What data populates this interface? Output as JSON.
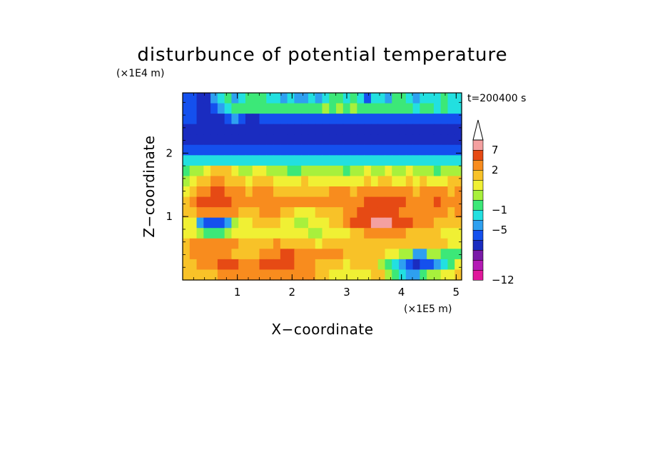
{
  "chart_data": {
    "type": "heatmap",
    "title": "disturbunce of potential temperature",
    "xlabel": "X−coordinate",
    "ylabel": "Z−coordinate",
    "x_unit": "(×1E5 m)",
    "y_unit": "(×1E4 m)",
    "time_label": "t=200400 s",
    "xlim": [
      0,
      5.1
    ],
    "ylim": [
      0,
      2.95
    ],
    "x_ticks": [
      1,
      2,
      3,
      4,
      5
    ],
    "x_tick_labels": [
      "1",
      "2",
      "3",
      "4",
      "5"
    ],
    "y_ticks": [
      1,
      2
    ],
    "y_tick_labels": [
      "1",
      "2"
    ],
    "colorbar": {
      "colors": [
        "#e0189a",
        "#b41ab4",
        "#7a1aa8",
        "#1a2cc0",
        "#1450ee",
        "#2ea0f0",
        "#22e0e0",
        "#3ce878",
        "#a8f03c",
        "#f0f034",
        "#f8c228",
        "#f88c1e",
        "#e64a14",
        "#f4a0a0"
      ],
      "tick_labels": [
        "−12",
        "−5",
        "−1",
        "2",
        "7"
      ],
      "tick_edges": [
        0,
        5,
        7,
        11,
        13
      ],
      "extend": "max"
    },
    "field": [
      [
        4,
        4,
        3,
        3,
        5,
        6,
        7,
        5,
        6,
        7,
        7,
        7,
        6,
        6,
        5,
        6,
        5,
        5,
        6,
        5,
        6,
        7,
        7,
        6,
        7,
        6,
        4,
        6,
        6,
        5,
        7,
        7,
        6,
        5,
        6,
        6,
        6,
        7,
        6,
        6
      ],
      [
        4,
        4,
        3,
        3,
        4,
        5,
        6,
        7,
        7,
        7,
        7,
        7,
        7,
        7,
        7,
        7,
        7,
        7,
        7,
        7,
        8,
        7,
        8,
        7,
        8,
        7,
        7,
        7,
        7,
        7,
        7,
        7,
        7,
        6,
        7,
        7,
        6,
        7,
        6,
        6
      ],
      [
        4,
        4,
        3,
        3,
        3,
        3,
        4,
        5,
        4,
        3,
        3,
        4,
        4,
        4,
        4,
        4,
        4,
        4,
        4,
        4,
        4,
        4,
        4,
        4,
        4,
        4,
        4,
        4,
        4,
        4,
        4,
        4,
        4,
        4,
        4,
        4,
        4,
        4,
        4,
        4
      ],
      [
        3,
        3,
        3,
        3,
        3,
        3,
        3,
        3,
        3,
        3,
        3,
        3,
        3,
        3,
        3,
        3,
        3,
        3,
        3,
        3,
        3,
        3,
        3,
        3,
        3,
        3,
        3,
        3,
        3,
        3,
        3,
        3,
        3,
        3,
        3,
        3,
        3,
        3,
        3,
        3
      ],
      [
        3,
        3,
        3,
        3,
        3,
        3,
        3,
        3,
        3,
        3,
        3,
        3,
        3,
        3,
        3,
        3,
        3,
        3,
        3,
        3,
        3,
        3,
        3,
        3,
        3,
        3,
        3,
        3,
        3,
        3,
        3,
        3,
        3,
        3,
        3,
        3,
        3,
        3,
        3,
        3
      ],
      [
        4,
        4,
        4,
        4,
        4,
        4,
        4,
        4,
        4,
        4,
        4,
        4,
        4,
        4,
        4,
        4,
        4,
        4,
        4,
        4,
        4,
        4,
        4,
        4,
        4,
        4,
        4,
        4,
        4,
        4,
        4,
        4,
        4,
        4,
        4,
        4,
        4,
        4,
        4,
        4
      ],
      [
        6,
        6,
        6,
        6,
        6,
        6,
        6,
        6,
        6,
        6,
        6,
        6,
        6,
        6,
        6,
        6,
        6,
        6,
        6,
        6,
        6,
        6,
        6,
        6,
        6,
        6,
        6,
        6,
        6,
        6,
        6,
        6,
        6,
        6,
        6,
        6,
        6,
        6,
        6,
        6
      ],
      [
        7,
        8,
        8,
        9,
        10,
        10,
        10,
        9,
        8,
        8,
        9,
        9,
        8,
        8,
        8,
        7,
        7,
        8,
        8,
        8,
        8,
        8,
        8,
        7,
        8,
        8,
        9,
        8,
        8,
        9,
        8,
        8,
        9,
        8,
        8,
        8,
        7,
        8,
        8,
        8
      ],
      [
        8,
        9,
        10,
        10,
        11,
        11,
        10,
        10,
        10,
        9,
        10,
        10,
        10,
        9,
        9,
        9,
        9,
        10,
        9,
        9,
        9,
        9,
        9,
        9,
        9,
        9,
        10,
        9,
        10,
        10,
        9,
        9,
        10,
        9,
        10,
        9,
        9,
        9,
        10,
        10
      ],
      [
        9,
        10,
        11,
        11,
        12,
        12,
        11,
        11,
        11,
        10,
        11,
        11,
        11,
        10,
        10,
        10,
        10,
        10,
        10,
        10,
        10,
        11,
        11,
        11,
        10,
        11,
        11,
        11,
        11,
        11,
        11,
        11,
        11,
        10,
        11,
        11,
        11,
        11,
        10,
        11
      ],
      [
        10,
        11,
        12,
        12,
        12,
        12,
        12,
        11,
        11,
        11,
        11,
        11,
        11,
        11,
        11,
        11,
        11,
        11,
        11,
        11,
        11,
        11,
        11,
        11,
        11,
        11,
        12,
        12,
        12,
        12,
        12,
        12,
        11,
        11,
        11,
        11,
        12,
        11,
        11,
        11
      ],
      [
        10,
        10,
        11,
        11,
        11,
        11,
        11,
        11,
        10,
        10,
        10,
        11,
        11,
        11,
        10,
        10,
        9,
        9,
        9,
        10,
        10,
        10,
        10,
        11,
        11,
        12,
        12,
        12,
        12,
        12,
        12,
        11,
        11,
        11,
        11,
        11,
        11,
        11,
        10,
        11
      ],
      [
        9,
        9,
        5,
        4,
        4,
        4,
        5,
        8,
        9,
        9,
        10,
        10,
        10,
        10,
        9,
        9,
        8,
        8,
        9,
        9,
        9,
        10,
        10,
        11,
        12,
        12,
        12,
        13,
        13,
        13,
        12,
        12,
        12,
        11,
        11,
        11,
        10,
        10,
        10,
        10
      ],
      [
        9,
        9,
        8,
        7,
        7,
        7,
        8,
        9,
        9,
        9,
        9,
        9,
        9,
        9,
        9,
        9,
        9,
        9,
        8,
        8,
        9,
        9,
        9,
        9,
        10,
        10,
        11,
        11,
        11,
        11,
        11,
        11,
        10,
        10,
        10,
        10,
        10,
        9,
        9,
        9
      ],
      [
        10,
        11,
        11,
        11,
        11,
        11,
        11,
        11,
        10,
        10,
        10,
        10,
        10,
        11,
        10,
        10,
        10,
        10,
        10,
        9,
        10,
        10,
        10,
        10,
        10,
        10,
        10,
        10,
        10,
        10,
        10,
        10,
        10,
        10,
        10,
        10,
        10,
        10,
        9,
        9
      ],
      [
        10,
        11,
        11,
        11,
        11,
        11,
        11,
        10,
        10,
        10,
        10,
        11,
        11,
        11,
        12,
        12,
        11,
        11,
        11,
        11,
        11,
        11,
        11,
        10,
        10,
        10,
        10,
        10,
        10,
        9,
        9,
        8,
        8,
        5,
        5,
        8,
        8,
        7,
        7,
        7
      ],
      [
        10,
        10,
        11,
        11,
        11,
        12,
        12,
        12,
        11,
        11,
        11,
        12,
        12,
        12,
        12,
        12,
        11,
        11,
        11,
        10,
        10,
        10,
        10,
        9,
        10,
        10,
        10,
        10,
        8,
        7,
        6,
        5,
        4,
        3,
        4,
        4,
        5,
        6,
        7,
        9
      ],
      [
        10,
        10,
        10,
        10,
        10,
        11,
        11,
        11,
        11,
        11,
        11,
        11,
        11,
        11,
        11,
        11,
        11,
        11,
        11,
        10,
        10,
        9,
        9,
        9,
        9,
        9,
        9,
        10,
        10,
        8,
        7,
        6,
        5,
        5,
        7,
        8,
        8,
        9,
        9,
        10
      ]
    ]
  }
}
